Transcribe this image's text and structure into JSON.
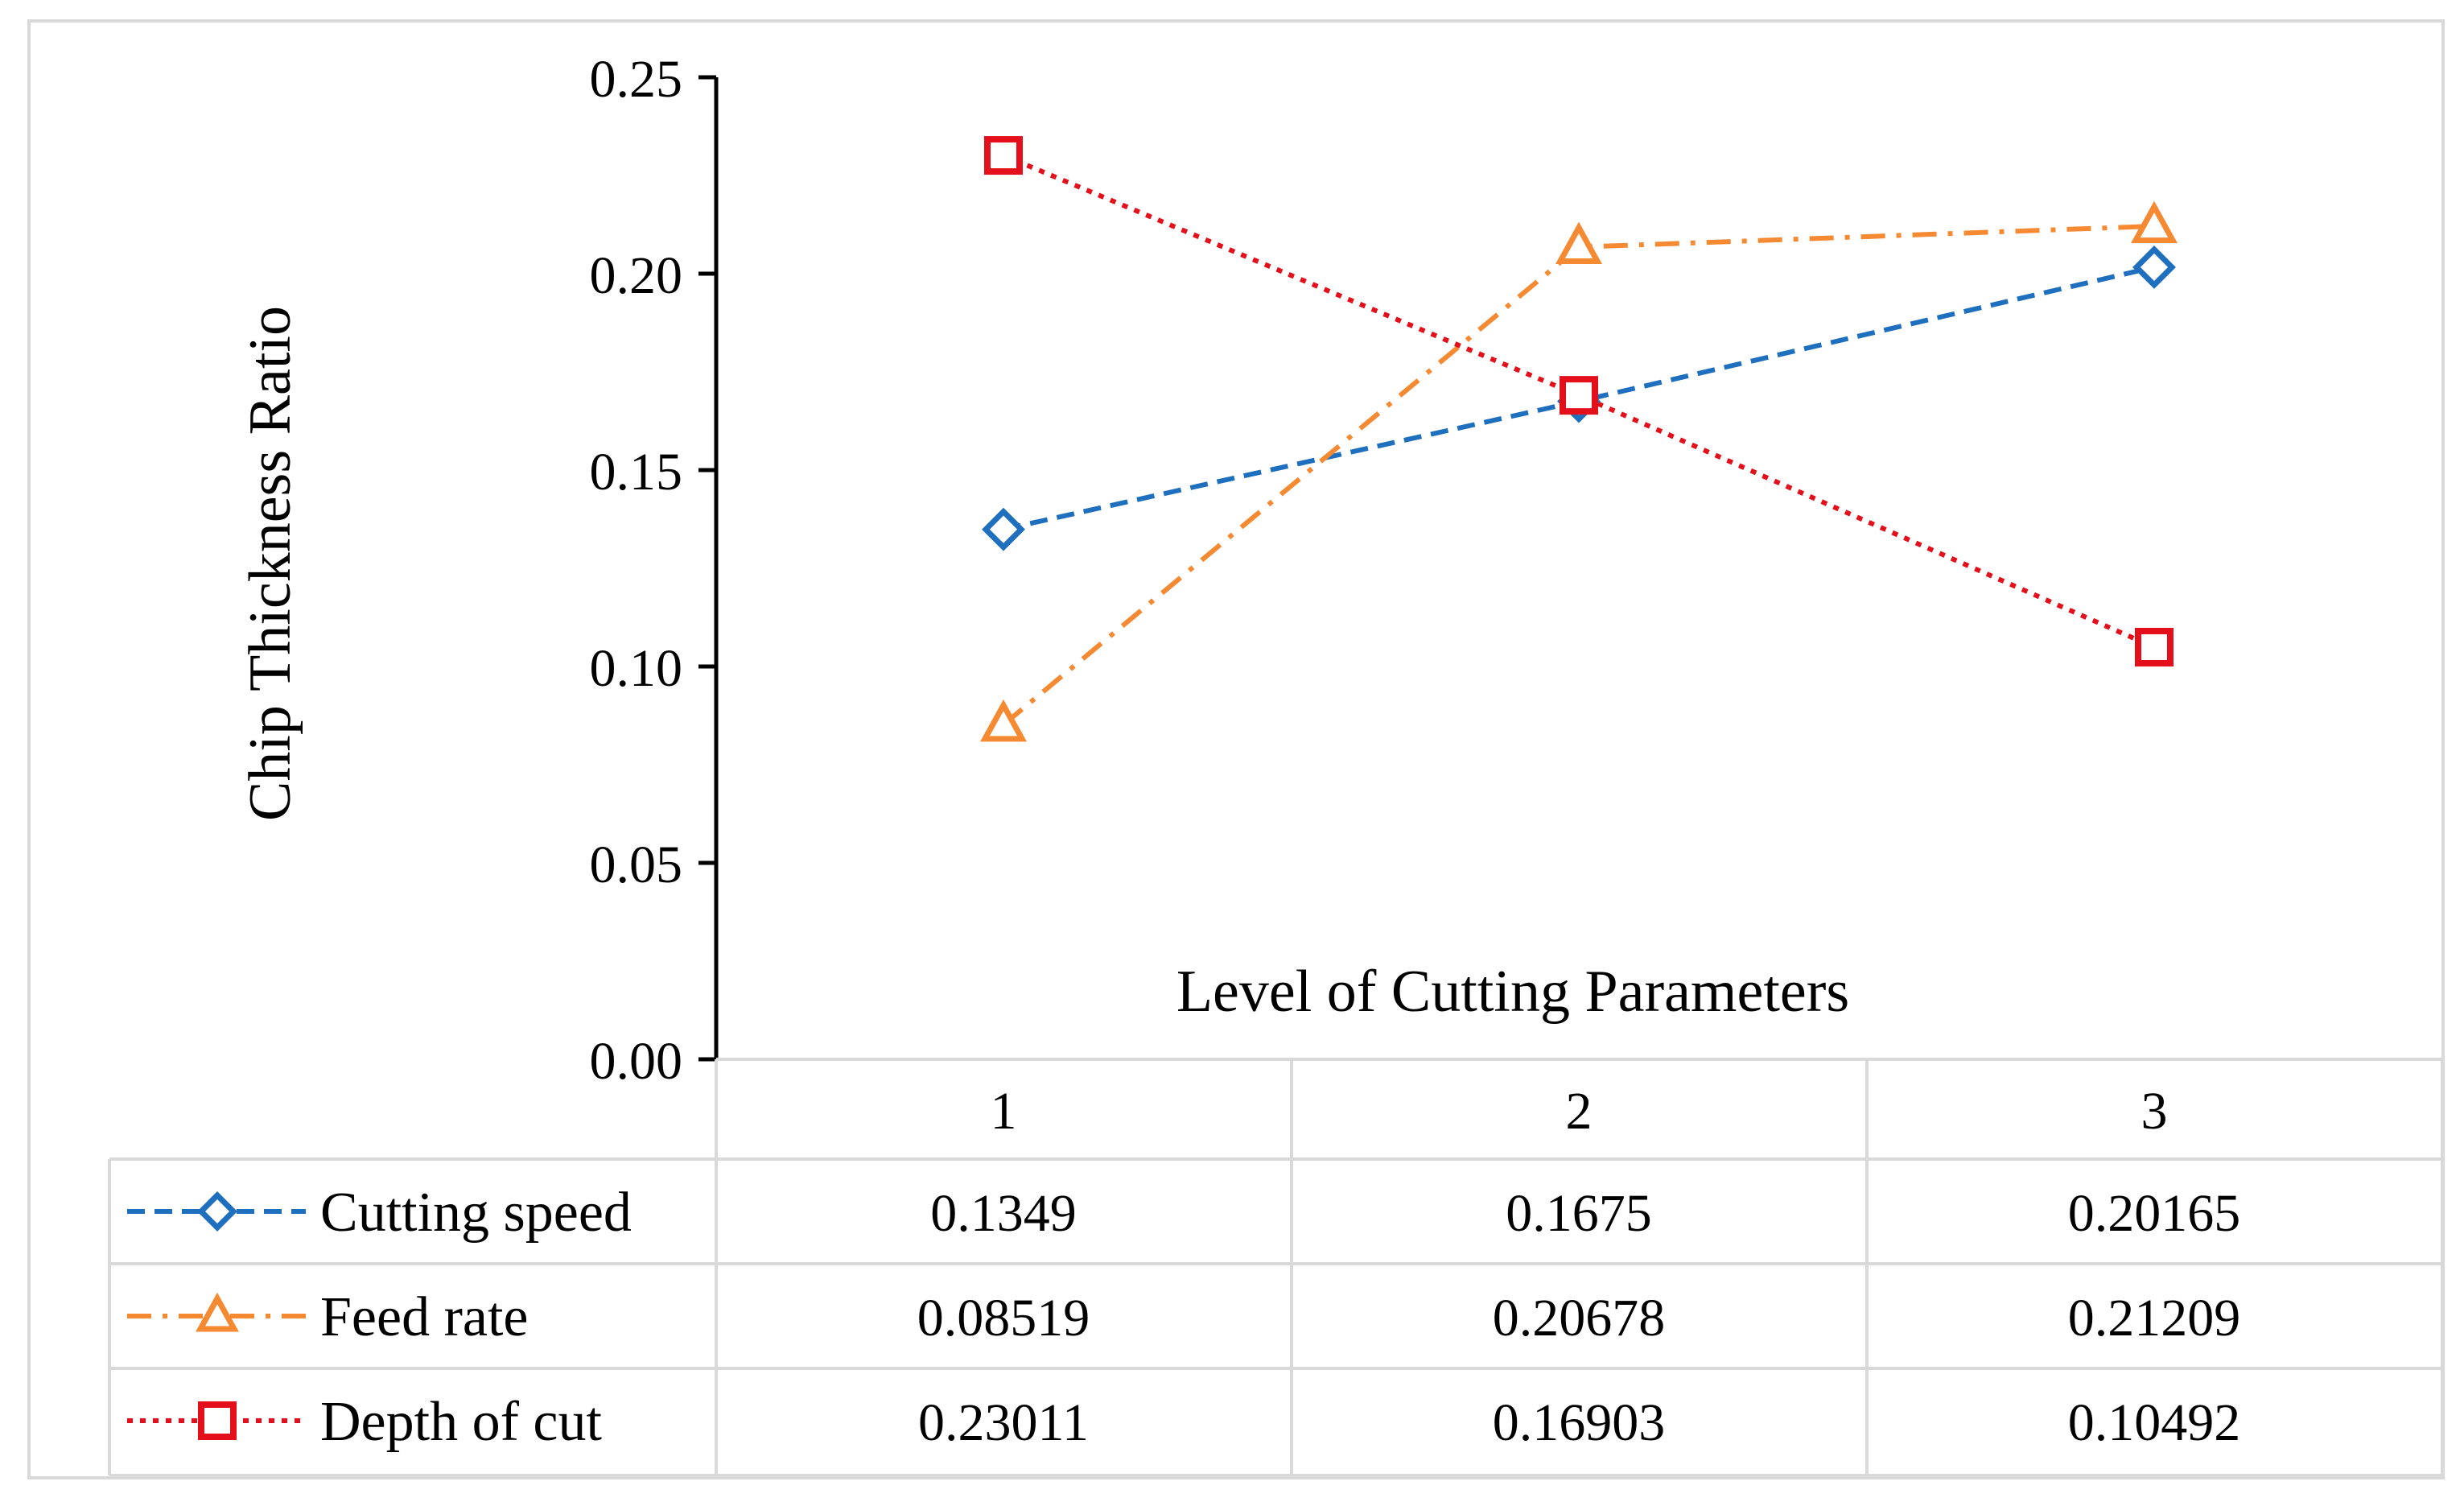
{
  "chart_data": {
    "type": "line",
    "title": "",
    "xlabel": "Level of Cutting Parameters",
    "ylabel": "Chip Thickness Ratio",
    "categories": [
      "1",
      "2",
      "3"
    ],
    "ylim": [
      0,
      0.25
    ],
    "yticks": [
      "0.00",
      "0.05",
      "0.10",
      "0.15",
      "0.20",
      "0.25"
    ],
    "grid": false,
    "legend": "data-table-below",
    "series": [
      {
        "name": "Cutting speed",
        "values": [
          0.1349,
          0.1675,
          0.20165
        ],
        "labels": [
          "0.1349",
          "0.1675",
          "0.20165"
        ],
        "color": "#1f6fbf",
        "marker": "diamond",
        "dash": "dashed"
      },
      {
        "name": "Feed rate",
        "values": [
          0.08519,
          0.20678,
          0.21209
        ],
        "labels": [
          "0.08519",
          "0.20678",
          "0.21209"
        ],
        "color": "#f58a33",
        "marker": "triangle",
        "dash": "dash-dot"
      },
      {
        "name": "Depth of cut",
        "values": [
          0.23011,
          0.16903,
          0.10492
        ],
        "labels": [
          "0.23011",
          "0.16903",
          "0.10492"
        ],
        "color": "#e3101c",
        "marker": "square",
        "dash": "dotted"
      }
    ]
  }
}
